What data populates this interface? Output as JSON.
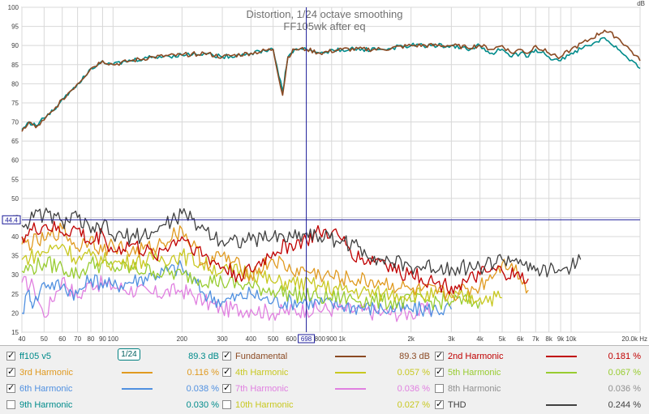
{
  "colors": {
    "fundamental": "#8b4a23",
    "ff105": "#008b8b",
    "h2": "#c00000",
    "h3": "#e09a20",
    "h4": "#c8c820",
    "h5": "#98cc30",
    "h6": "#5090e0",
    "h7": "#e080e0",
    "thd": "#404040",
    "cursor": "#1a1a99",
    "grid": "#d8d8d8"
  },
  "chart_data": {
    "type": "line",
    "title": "Distortion, 1/24 octave smoothing",
    "subtitle": "FF105wk after eq",
    "xscale": "log",
    "xlim": [
      40,
      20000
    ],
    "ylim": [
      15,
      100
    ],
    "ylabel": "dB",
    "xunit": "Hz",
    "x_ticks": [
      40,
      50,
      60,
      70,
      80,
      90,
      100,
      200,
      300,
      400,
      500,
      600,
      800,
      900,
      1000,
      2000,
      3000,
      4000,
      5000,
      6000,
      7000,
      8000,
      9000,
      10000,
      20000
    ],
    "x_tick_labels": [
      "40",
      "50",
      "60",
      "70",
      "80",
      "90",
      "100",
      "200",
      "300",
      "400",
      "500",
      "600",
      "800",
      "900",
      "1k",
      "2k",
      "3k",
      "4k",
      "5k",
      "6k",
      "7k",
      "8k",
      "9k",
      "10k",
      "20.0k Hz"
    ],
    "y_ticks": [
      15,
      20,
      25,
      30,
      35,
      40,
      45,
      50,
      55,
      60,
      65,
      70,
      75,
      80,
      85,
      90,
      95,
      100
    ],
    "y_tick_labels": [
      "15",
      "20",
      "25",
      "30",
      "35",
      "40",
      "45",
      "50",
      "55",
      "60",
      "65",
      "70",
      "75",
      "80",
      "85",
      "90",
      "95",
      "100"
    ],
    "cursor": {
      "x": 698,
      "x_label": "698",
      "y": 44.4,
      "y_label": "44.4"
    },
    "series": [
      {
        "name": "ff105 v5",
        "color_key": "ff105",
        "x": [
          40,
          43,
          46,
          50,
          55,
          60,
          70,
          80,
          90,
          100,
          120,
          150,
          200,
          250,
          300,
          400,
          500,
          550,
          580,
          620,
          700,
          800,
          1000,
          1500,
          2000,
          3000,
          3500,
          4000,
          4500,
          5000,
          5500,
          6000,
          6500,
          7000,
          8000,
          9000,
          10000,
          12000,
          14000,
          16000,
          18000,
          20000
        ],
        "y": [
          68,
          70,
          69,
          71,
          73,
          76,
          80,
          84,
          86,
          85,
          86,
          87,
          87.5,
          88,
          87,
          88,
          89,
          78,
          87,
          89,
          89,
          88,
          89,
          89,
          90,
          90,
          89,
          90,
          88,
          89,
          87,
          88,
          87,
          89,
          87,
          86,
          88,
          90,
          92,
          89,
          86,
          84
        ]
      },
      {
        "name": "Fundamental",
        "color_key": "fundamental",
        "x": [
          40,
          43,
          46,
          50,
          55,
          60,
          70,
          80,
          90,
          100,
          120,
          150,
          200,
          250,
          300,
          400,
          500,
          550,
          580,
          620,
          700,
          800,
          1000,
          1500,
          2000,
          3000,
          3500,
          4000,
          4500,
          5000,
          5500,
          6000,
          6500,
          7000,
          8000,
          9000,
          10000,
          12000,
          14000,
          16000,
          18000,
          20000
        ],
        "y": [
          67.5,
          70,
          68.5,
          70.5,
          73,
          76,
          80,
          84,
          86,
          85,
          86,
          87,
          87.5,
          88,
          87,
          88,
          89,
          77,
          87,
          89,
          89,
          88,
          89,
          89,
          90,
          90,
          89.5,
          90,
          89,
          90,
          88,
          89,
          88,
          90,
          88,
          87,
          89,
          91.5,
          94,
          92,
          89,
          86
        ]
      },
      {
        "name": "2nd Harmonic",
        "color_key": "h2",
        "x": [
          40,
          50,
          60,
          70,
          80,
          90,
          100,
          120,
          150,
          200,
          250,
          300,
          350,
          400,
          500,
          600,
          700,
          800,
          900,
          1000,
          1200,
          1500,
          1800,
          2000,
          2500,
          3000,
          3500,
          4000,
          5000,
          6000,
          6500
        ],
        "y": [
          40,
          43,
          41,
          42,
          38,
          41,
          36,
          38,
          35,
          40,
          35,
          32,
          30,
          31,
          36,
          38,
          39,
          41,
          41,
          39,
          34,
          34,
          30,
          31,
          28,
          27,
          28,
          30,
          31,
          29,
          29
        ]
      },
      {
        "name": "3rd Harmonic",
        "color_key": "h3",
        "x": [
          40,
          50,
          60,
          70,
          80,
          90,
          100,
          120,
          150,
          200,
          250,
          300,
          400,
          500,
          600,
          700,
          800,
          1000,
          1500,
          2000,
          3000,
          4000,
          5000,
          5500,
          6000,
          6500
        ],
        "y": [
          38,
          39,
          42,
          37,
          40,
          36,
          38,
          36,
          37,
          42,
          33,
          35,
          30,
          34,
          31,
          31,
          30,
          29,
          28,
          26,
          25,
          27,
          33,
          33,
          29,
          26
        ]
      },
      {
        "name": "4th Harmonic",
        "color_key": "h4",
        "x": [
          40,
          50,
          60,
          70,
          80,
          100,
          150,
          200,
          300,
          400,
          500,
          600,
          800,
          1000,
          1500,
          2000,
          3000,
          4000,
          5000
        ],
        "y": [
          34,
          36,
          38,
          34,
          35,
          33,
          34,
          35,
          31,
          31,
          28,
          28,
          27,
          26,
          25,
          25,
          24,
          24,
          24
        ]
      },
      {
        "name": "5th Harmonic",
        "color_key": "h5",
        "x": [
          40,
          50,
          60,
          70,
          80,
          100,
          150,
          200,
          300,
          400,
          500,
          600,
          800,
          1000,
          1500,
          2000,
          3000,
          4000
        ],
        "y": [
          31,
          33,
          32,
          30,
          33,
          32,
          31,
          30,
          28,
          27,
          26,
          25,
          24,
          24,
          23,
          23,
          23,
          23
        ]
      },
      {
        "name": "6th Harmonic",
        "color_key": "h6",
        "x": [
          40,
          43,
          45,
          50,
          60,
          70,
          80,
          100,
          150,
          200,
          250,
          300,
          400,
          500,
          700,
          1000,
          1500,
          2000,
          3000
        ],
        "y": [
          20,
          26,
          22,
          28,
          27,
          25,
          29,
          27,
          30,
          32,
          25,
          23,
          25,
          23,
          23,
          22,
          21,
          21,
          21
        ]
      },
      {
        "name": "7th Harmonic",
        "color_key": "h7",
        "x": [
          40,
          45,
          50,
          60,
          70,
          80,
          100,
          150,
          200,
          250,
          300,
          400,
          500,
          700,
          1000,
          1500,
          2000,
          2500
        ],
        "y": [
          28,
          27,
          19,
          29,
          24,
          28,
          27,
          25,
          26,
          23,
          21,
          21,
          20,
          21,
          21,
          20,
          20,
          21
        ]
      },
      {
        "name": "THD",
        "color_key": "thd",
        "x": [
          40,
          45,
          50,
          60,
          70,
          80,
          90,
          100,
          120,
          150,
          200,
          250,
          300,
          400,
          500,
          600,
          700,
          800,
          1000,
          1500,
          2000,
          3000,
          4000,
          5000,
          6000,
          6500,
          7000,
          8000,
          9000,
          10000,
          11000
        ],
        "y": [
          43,
          45,
          46,
          44,
          45,
          41,
          43,
          40,
          40,
          41,
          46,
          42,
          39,
          39,
          40,
          40,
          41,
          40,
          39,
          34,
          32,
          32,
          32,
          34,
          34,
          31,
          31,
          31,
          31,
          32,
          34
        ]
      }
    ]
  },
  "legend": {
    "smoothing_label": "1/24",
    "rows": [
      [
        {
          "name": "ff105 v5",
          "checked": true,
          "color_key": "ff105",
          "value": "89.3 dB",
          "has_line": false
        },
        {
          "name": "Fundamental",
          "checked": true,
          "color_key": "fundamental",
          "value": "89.3 dB",
          "has_line": true
        },
        {
          "name": "2nd Harmonic",
          "checked": true,
          "color_key": "h2",
          "value": "0.181 %",
          "has_line": true
        }
      ],
      [
        {
          "name": "3rd Harmonic",
          "checked": true,
          "color_key": "h3",
          "value": "0.116 %",
          "has_line": true
        },
        {
          "name": "4th Harmonic",
          "checked": true,
          "color_key": "h4",
          "value": "0.057 %",
          "has_line": true
        },
        {
          "name": "5th Harmonic",
          "checked": true,
          "color_key": "h5",
          "value": "0.067 %",
          "has_line": true
        }
      ],
      [
        {
          "name": "6th Harmonic",
          "checked": true,
          "color_key": "h6",
          "value": "0.038 %",
          "has_line": true
        },
        {
          "name": "7th Harmonic",
          "checked": true,
          "color_key": "h7",
          "value": "0.036 %",
          "has_line": true
        },
        {
          "name": "8th Harmonic",
          "checked": false,
          "color_key": "gray",
          "value": "0.036 %",
          "has_line": false
        }
      ],
      [
        {
          "name": "9th Harmonic",
          "checked": false,
          "color_key": "ff105",
          "value": "0.030 %",
          "has_line": false
        },
        {
          "name": "10th Harmonic",
          "checked": false,
          "color_key": "h4",
          "value": "0.027 %",
          "has_line": false
        },
        {
          "name": "THD",
          "checked": true,
          "color_key": "thd",
          "value": "0.244 %",
          "has_line": true
        }
      ]
    ]
  }
}
